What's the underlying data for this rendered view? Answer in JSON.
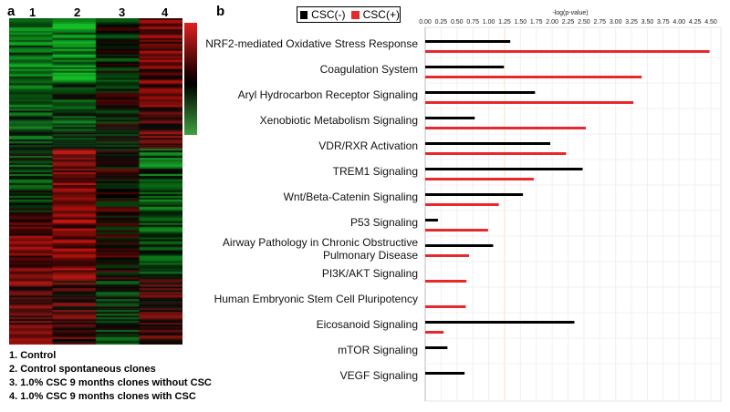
{
  "panels": {
    "a": "a",
    "b": "b"
  },
  "heatmap": {
    "columns": [
      "1",
      "2",
      "3",
      "4"
    ]
  },
  "legend_items": [
    "1.   Control",
    "2.   Control spontaneous clones",
    "3.   1.0% CSC 9 months clones without CSC",
    "4.   1.0% CSC 9 months clones with CSC"
  ],
  "colors": {
    "neg": "#000000",
    "pos": "#e8282b"
  },
  "chart_data": {
    "type": "bar",
    "orientation": "horizontal",
    "xlabel": "-log(p-value)",
    "xlim": [
      0,
      4.5
    ],
    "xticks": [
      "0.00",
      "0.25",
      "0.50",
      "0.75",
      "1.00",
      "1.25",
      "1.50",
      "1.75",
      "2.00",
      "2.25",
      "2.50",
      "2.75",
      "3.00",
      "3.25",
      "3.50",
      "3.75",
      "4.00",
      "4.25",
      "4.50"
    ],
    "legend": [
      "CSC(-)",
      "CSC(+)"
    ],
    "legend_position": "top-left",
    "categories": [
      "NRF2-mediated Oxidative Stress Response",
      "Coagulation System",
      "Aryl Hydrocarbon Receptor Signaling",
      "Xenobiotic Metabolism Signaling",
      "VDR/RXR Activation",
      "TREM1 Signaling",
      "Wnt/Beta-Catenin Signaling",
      "P53 Signaling",
      "Airway Pathology in Chronic Obstructive Pulmonary Disease",
      "PI3K/AKT Signaling",
      "Human Embryonic Stem Cell Pluripotency",
      "Eicosanoid Signaling",
      "mTOR Signaling",
      "VEGF Signaling"
    ],
    "series": [
      {
        "name": "CSC(-)",
        "values": [
          1.34,
          1.24,
          1.73,
          0.78,
          1.97,
          2.48,
          1.54,
          0.2,
          1.07,
          0,
          0,
          2.35,
          0.35,
          0.62
        ]
      },
      {
        "name": "CSC(+)",
        "values": [
          4.48,
          3.41,
          3.28,
          2.53,
          2.22,
          1.71,
          1.16,
          0.99,
          0.69,
          0.65,
          0.64,
          0.29,
          0,
          0
        ]
      }
    ]
  }
}
